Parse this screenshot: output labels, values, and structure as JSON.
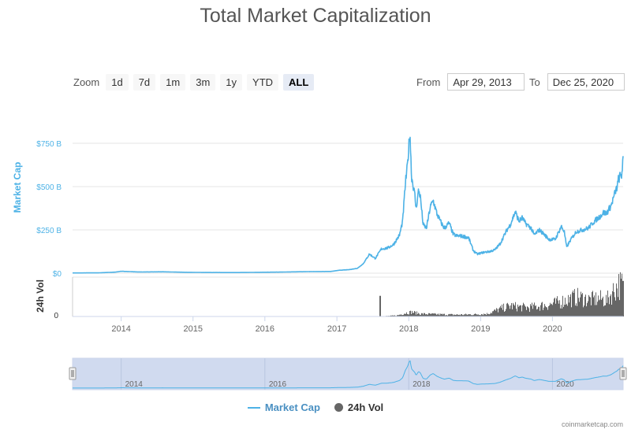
{
  "title": "Total Market Capitalization",
  "zoom": {
    "label": "Zoom",
    "buttons": [
      "1d",
      "7d",
      "1m",
      "3m",
      "1y",
      "YTD",
      "ALL"
    ],
    "active": "ALL"
  },
  "range": {
    "from_label": "From",
    "from_value": "Apr 29, 2013",
    "to_label": "To",
    "to_value": "Dec 25, 2020"
  },
  "legend": {
    "market_cap": "Market Cap",
    "volume": "24h Vol"
  },
  "credit": "coinmarketcap.com",
  "colors": {
    "market_cap": "#4db2e6",
    "volume": "#666666",
    "navigator_mask": "#c8d4ec"
  },
  "chart_data": {
    "type": "line",
    "ylabel": "Market Cap",
    "volume_label": "24h Vol",
    "y_ticks": [
      "$0",
      "$250 B",
      "$500 B",
      "$750 B"
    ],
    "y_tick_values": [
      0,
      250,
      500,
      750
    ],
    "volume_ticks": [
      "0"
    ],
    "x_ticks": [
      "2014",
      "2015",
      "2016",
      "2017",
      "2018",
      "2019",
      "2020"
    ],
    "x_tick_values": [
      2014,
      2015,
      2016,
      2017,
      2018,
      2019,
      2020
    ],
    "navigator_ticks": [
      "2014",
      "2016",
      "2018",
      "2020"
    ],
    "navigator_tick_values": [
      2014,
      2016,
      2018,
      2020
    ],
    "xlim": [
      "2013-04-29",
      "2020-12-25"
    ],
    "ylim_billions": [
      0,
      820
    ],
    "grid": true,
    "legend_position": "bottom-center",
    "series": [
      {
        "name": "Market Cap",
        "unit": "USD billions",
        "x": [
          "2013-04-29",
          "2013-09-01",
          "2013-12-01",
          "2014-01-01",
          "2014-04-01",
          "2014-08-01",
          "2014-12-01",
          "2015-04-01",
          "2015-08-01",
          "2015-12-01",
          "2016-04-01",
          "2016-08-01",
          "2016-12-01",
          "2017-01-15",
          "2017-03-01",
          "2017-04-15",
          "2017-05-15",
          "2017-06-15",
          "2017-07-15",
          "2017-08-15",
          "2017-09-15",
          "2017-10-15",
          "2017-11-15",
          "2017-12-01",
          "2017-12-15",
          "2017-12-25",
          "2018-01-07",
          "2018-01-15",
          "2018-02-01",
          "2018-02-07",
          "2018-02-20",
          "2018-03-01",
          "2018-03-15",
          "2018-04-01",
          "2018-04-20",
          "2018-05-05",
          "2018-05-25",
          "2018-06-15",
          "2018-07-01",
          "2018-07-25",
          "2018-08-15",
          "2018-09-01",
          "2018-09-20",
          "2018-10-15",
          "2018-11-01",
          "2018-11-25",
          "2018-12-15",
          "2019-01-15",
          "2019-02-15",
          "2019-03-15",
          "2019-04-10",
          "2019-05-15",
          "2019-06-01",
          "2019-06-26",
          "2019-07-15",
          "2019-08-01",
          "2019-08-15",
          "2019-09-15",
          "2019-09-30",
          "2019-10-26",
          "2019-11-15",
          "2019-12-15",
          "2020-01-15",
          "2020-02-15",
          "2020-03-01",
          "2020-03-13",
          "2020-04-01",
          "2020-05-01",
          "2020-06-01",
          "2020-07-01",
          "2020-08-01",
          "2020-09-01",
          "2020-09-15",
          "2020-10-01",
          "2020-10-25",
          "2020-11-10",
          "2020-11-25",
          "2020-12-01",
          "2020-12-10",
          "2020-12-17",
          "2020-12-22",
          "2020-12-25"
        ],
        "values": [
          1.5,
          1.7,
          6,
          11,
          7,
          8,
          5,
          4,
          3.5,
          5,
          6.5,
          9,
          10,
          17,
          20,
          28,
          55,
          110,
          85,
          140,
          145,
          165,
          220,
          300,
          520,
          615,
          820,
          560,
          450,
          370,
          480,
          440,
          280,
          260,
          380,
          420,
          340,
          290,
          260,
          290,
          225,
          215,
          215,
          210,
          205,
          130,
          110,
          120,
          125,
          135,
          170,
          250,
          280,
          355,
          300,
          320,
          290,
          260,
          220,
          250,
          230,
          195,
          195,
          270,
          240,
          150,
          190,
          240,
          250,
          260,
          300,
          330,
          350,
          345,
          390,
          450,
          500,
          540,
          560,
          560,
          630,
          650
        ]
      },
      {
        "name": "24h Vol",
        "unit": "USD billions",
        "x": [
          "2013-04-29",
          "2017-05-01",
          "2017-08-01",
          "2017-09-01",
          "2017-11-01",
          "2017-12-15",
          "2018-01-15",
          "2018-03-01",
          "2018-06-01",
          "2018-09-01",
          "2018-12-01",
          "2019-02-01",
          "2019-04-15",
          "2019-06-01",
          "2019-07-01",
          "2019-09-01",
          "2019-11-01",
          "2020-01-01",
          "2020-03-01",
          "2020-05-01",
          "2020-07-01",
          "2020-09-01",
          "2020-10-01",
          "2020-11-01",
          "2020-12-01",
          "2020-12-25"
        ],
        "values": [
          0.05,
          0.3,
          1,
          2,
          6,
          20,
          25,
          15,
          12,
          10,
          12,
          15,
          45,
          60,
          55,
          50,
          60,
          70,
          90,
          110,
          95,
          100,
          90,
          140,
          180,
          170
        ]
      }
    ]
  }
}
